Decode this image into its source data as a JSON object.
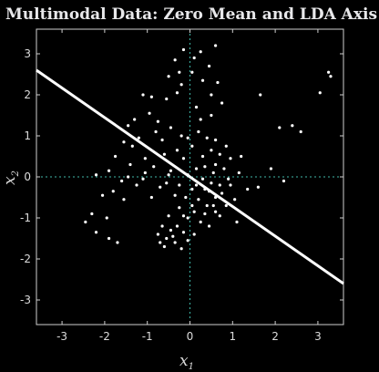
{
  "chart_data": {
    "type": "scatter",
    "title": "Multimodal Data: Zero Mean and LDA Axis",
    "xlabel": {
      "base": "x",
      "sub": "1"
    },
    "ylabel": {
      "base": "x",
      "sub": "2"
    },
    "xlim": [
      -3.6,
      3.6
    ],
    "ylim": [
      -3.6,
      3.6
    ],
    "xticks": [
      -3,
      -2,
      -1,
      0,
      1,
      2,
      3
    ],
    "yticks": [
      3,
      2,
      1,
      0,
      -1,
      -2,
      -3
    ],
    "grid": false,
    "zero_lines": "dotted",
    "lda_axis": {
      "p1": [
        -3.6,
        2.6
      ],
      "p2": [
        3.6,
        -2.6
      ]
    },
    "points": [
      [
        -0.15,
        3.1
      ],
      [
        0.25,
        3.05
      ],
      [
        0.6,
        3.2
      ],
      [
        0.1,
        2.9
      ],
      [
        -0.35,
        2.85
      ],
      [
        0.45,
        2.7
      ],
      [
        0.05,
        2.55
      ],
      [
        -0.5,
        2.45
      ],
      [
        0.3,
        2.35
      ],
      [
        -0.2,
        2.25
      ],
      [
        0.65,
        2.3
      ],
      [
        -1.1,
        2.0
      ],
      [
        -0.9,
        1.95
      ],
      [
        -0.55,
        1.9
      ],
      [
        -0.3,
        2.05
      ],
      [
        -0.95,
        1.55
      ],
      [
        -1.3,
        1.4
      ],
      [
        -0.75,
        1.35
      ],
      [
        0.15,
        1.7
      ],
      [
        0.75,
        1.8
      ],
      [
        0.5,
        1.5
      ],
      [
        -0.45,
        1.2
      ],
      [
        -1.2,
        0.95
      ],
      [
        -1.55,
        0.85
      ],
      [
        -0.65,
        0.9
      ],
      [
        -1.75,
        0.5
      ],
      [
        -1.4,
        0.3
      ],
      [
        -1.05,
        0.45
      ],
      [
        -0.85,
        0.25
      ],
      [
        -1.9,
        0.15
      ],
      [
        -2.2,
        0.05
      ],
      [
        -1.6,
        -0.1
      ],
      [
        -1.25,
        -0.2
      ],
      [
        -1.8,
        -0.35
      ],
      [
        -2.05,
        -0.45
      ],
      [
        -1.55,
        -0.55
      ],
      [
        -2.3,
        -0.9
      ],
      [
        -1.95,
        -1.0
      ],
      [
        -2.45,
        -1.1
      ],
      [
        -2.2,
        -1.35
      ],
      [
        -1.9,
        -1.5
      ],
      [
        -1.7,
        -1.6
      ],
      [
        -0.9,
        -0.5
      ],
      [
        -0.7,
        -0.25
      ],
      [
        -0.45,
        0.15
      ],
      [
        -0.6,
        0.55
      ],
      [
        0.2,
        1.1
      ],
      [
        0.05,
        0.75
      ],
      [
        -0.15,
        0.45
      ],
      [
        0.6,
        0.3
      ],
      [
        0.7,
        0.55
      ],
      [
        0.85,
        0.75
      ],
      [
        0.5,
        0.65
      ],
      [
        0.95,
        0.45
      ],
      [
        0.8,
        0.2
      ],
      [
        0.55,
        0.1
      ],
      [
        0.35,
        0.25
      ],
      [
        0.9,
        -0.05
      ],
      [
        0.7,
        -0.2
      ],
      [
        0.45,
        -0.35
      ],
      [
        0.3,
        -0.05
      ],
      [
        0.15,
        0.2
      ],
      [
        0.6,
        -0.5
      ],
      [
        0.4,
        -0.7
      ],
      [
        0.2,
        -0.55
      ],
      [
        0.75,
        -0.4
      ],
      [
        0.5,
        -0.15
      ],
      [
        0.35,
        -0.9
      ],
      [
        0.1,
        -0.85
      ],
      [
        0.25,
        -1.1
      ],
      [
        0.05,
        -0.3
      ],
      [
        -0.1,
        -0.5
      ],
      [
        -0.25,
        -0.75
      ],
      [
        -0.05,
        -1.0
      ],
      [
        -0.3,
        -1.2
      ],
      [
        -0.15,
        -1.35
      ],
      [
        -0.45,
        -1.3
      ],
      [
        -0.55,
        -1.5
      ],
      [
        -0.35,
        -1.6
      ],
      [
        -0.6,
        -1.7
      ],
      [
        -0.2,
        -1.75
      ],
      [
        -0.05,
        -1.55
      ],
      [
        0.1,
        -1.4
      ],
      [
        -0.4,
        -1.45
      ],
      [
        -0.7,
        -1.6
      ],
      [
        0.45,
        -1.2
      ],
      [
        0.6,
        -0.85
      ],
      [
        0.85,
        -0.7
      ],
      [
        1.05,
        -0.55
      ],
      [
        1.1,
        -1.1
      ],
      [
        0.95,
        -0.2
      ],
      [
        1.15,
        0.1
      ],
      [
        1.35,
        -0.3
      ],
      [
        1.6,
        -0.25
      ],
      [
        1.9,
        0.2
      ],
      [
        2.2,
        -0.1
      ],
      [
        2.4,
        1.25
      ],
      [
        2.6,
        1.1
      ],
      [
        2.1,
        1.2
      ],
      [
        3.25,
        2.55
      ],
      [
        3.3,
        2.45
      ],
      [
        3.05,
        2.05
      ],
      [
        1.65,
        2.0
      ],
      [
        -0.25,
        -0.2
      ],
      [
        -0.5,
        0.05
      ],
      [
        -0.05,
        0.05
      ],
      [
        0.15,
        -0.2
      ],
      [
        -0.35,
        -0.45
      ],
      [
        0.3,
        0.5
      ],
      [
        0.05,
        -0.7
      ],
      [
        -0.15,
        -0.95
      ],
      [
        -0.5,
        -0.95
      ],
      [
        -0.65,
        -1.2
      ],
      [
        -0.75,
        -1.4
      ],
      [
        0.6,
        0.9
      ],
      [
        0.4,
        0.95
      ],
      [
        -1.05,
        0.1
      ],
      [
        -1.35,
        0.75
      ],
      [
        -0.2,
        1.0
      ],
      [
        0.35,
        -0.3
      ],
      [
        0.55,
        -0.7
      ],
      [
        0.7,
        -0.95
      ],
      [
        -0.55,
        -0.15
      ],
      [
        -0.3,
        0.65
      ],
      [
        -0.05,
        0.95
      ],
      [
        0.25,
        1.4
      ],
      [
        -0.8,
        1.1
      ],
      [
        -1.45,
        1.25
      ],
      [
        -0.25,
        2.55
      ],
      [
        0.5,
        2.0
      ],
      [
        -1.1,
        -0.05
      ],
      [
        -1.45,
        0.0
      ],
      [
        1.2,
        0.5
      ]
    ]
  }
}
